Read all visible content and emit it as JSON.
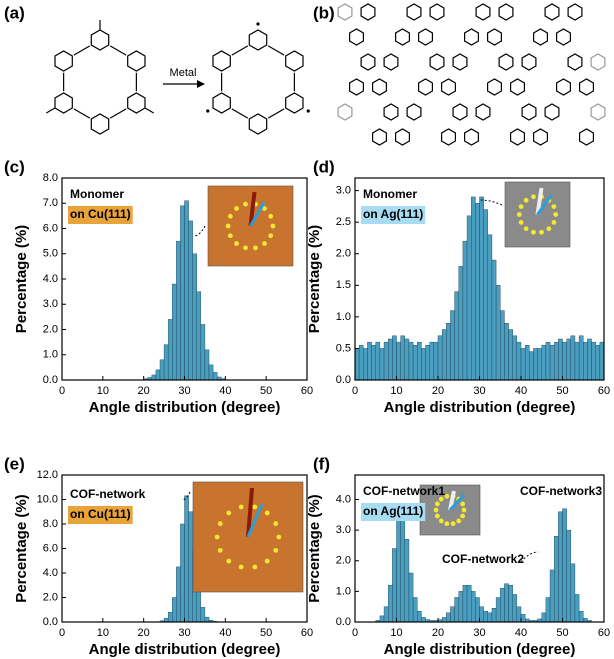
{
  "diagrams": [
    {
      "label": "(a)",
      "arrow_label": "Metal"
    },
    {
      "label": "(b)"
    }
  ],
  "chart_data": [
    {
      "type": "histogram",
      "panel_label": "(c)",
      "x_label": "Angle distribution (degree)",
      "y_label": "Percentage (%)",
      "color": "#4a9ec0",
      "annotations": [
        {
          "text": "Monomer"
        },
        {
          "text": "on Cu(111)",
          "background": "#e8a33a"
        }
      ],
      "bins": [
        0,
        1,
        2,
        3,
        4,
        5,
        6,
        7,
        8,
        9,
        10,
        11,
        12,
        13,
        14,
        15,
        16,
        17,
        18,
        19,
        20,
        21,
        22,
        23,
        24,
        25,
        26,
        27,
        28,
        29,
        30,
        31,
        32,
        33,
        34,
        35,
        36,
        37,
        38,
        39,
        40,
        41,
        42,
        43,
        44,
        45,
        46,
        47,
        48,
        49,
        50,
        51,
        52,
        53,
        54,
        55,
        56,
        57,
        58,
        59,
        60
      ],
      "values": [
        0,
        0,
        0,
        0,
        0,
        0,
        0,
        0,
        0,
        0,
        0,
        0,
        0,
        0,
        0,
        0,
        0,
        0,
        0,
        0,
        0.05,
        0.1,
        0.2,
        0.4,
        0.8,
        1.4,
        2.4,
        3.8,
        5.5,
        6.9,
        7.1,
        6.3,
        5.0,
        3.5,
        2.2,
        1.2,
        0.6,
        0.3,
        0.12,
        0.05,
        0,
        0,
        0,
        0,
        0,
        0,
        0,
        0,
        0,
        0,
        0,
        0,
        0,
        0,
        0,
        0,
        0,
        0,
        0,
        0
      ],
      "xlim": [
        0,
        60
      ],
      "xticks": [
        0,
        10,
        20,
        30,
        40,
        50,
        60
      ],
      "ylim": [
        0,
        8
      ],
      "yticks": [
        {
          "value": 0,
          "label": "0.0"
        },
        {
          "value": 1,
          "label": "1.0"
        },
        {
          "value": 2,
          "label": "2.0"
        },
        {
          "value": 3,
          "label": "3.0"
        },
        {
          "value": 4,
          "label": "4.0"
        },
        {
          "value": 5,
          "label": "5.0"
        },
        {
          "value": 6,
          "label": "6.0"
        },
        {
          "value": 7,
          "label": "7.0"
        },
        {
          "value": 8,
          "label": "8.0"
        }
      ]
    },
    {
      "type": "histogram",
      "panel_label": "(d)",
      "x_label": "Angle distribution (degree)",
      "y_label": "Percentage (%)",
      "color": "#4a9ec0",
      "annotations": [
        {
          "text": "Monomer"
        },
        {
          "text": "on Ag(111)",
          "background": "#a8dcf2"
        }
      ],
      "bins": [
        0,
        1,
        2,
        3,
        4,
        5,
        6,
        7,
        8,
        9,
        10,
        11,
        12,
        13,
        14,
        15,
        16,
        17,
        18,
        19,
        20,
        21,
        22,
        23,
        24,
        25,
        26,
        27,
        28,
        29,
        30,
        31,
        32,
        33,
        34,
        35,
        36,
        37,
        38,
        39,
        40,
        41,
        42,
        43,
        44,
        45,
        46,
        47,
        48,
        49,
        50,
        51,
        52,
        53,
        54,
        55,
        56,
        57,
        58,
        59,
        60
      ],
      "values": [
        0.5,
        0.55,
        0.5,
        0.6,
        0.55,
        0.6,
        0.5,
        0.6,
        0.65,
        0.7,
        0.6,
        0.7,
        0.65,
        0.6,
        0.55,
        0.6,
        0.5,
        0.55,
        0.6,
        0.6,
        0.7,
        0.8,
        0.9,
        1.1,
        1.4,
        1.8,
        2.2,
        2.6,
        2.9,
        2.8,
        2.9,
        2.7,
        2.3,
        1.9,
        1.5,
        1.1,
        0.9,
        0.8,
        0.7,
        0.6,
        0.5,
        0.55,
        0.45,
        0.5,
        0.5,
        0.55,
        0.6,
        0.55,
        0.6,
        0.65,
        0.6,
        0.65,
        0.7,
        0.6,
        0.7,
        0.6,
        0.65,
        0.6,
        0.55,
        0.6
      ],
      "xlim": [
        0,
        60
      ],
      "xticks": [
        0,
        10,
        20,
        30,
        40,
        50,
        60
      ],
      "ylim": [
        0,
        3.2
      ],
      "yticks": [
        {
          "value": 0,
          "label": "0.0"
        },
        0.5,
        {
          "value": 1,
          "label": "1.0"
        },
        1.5,
        {
          "value": 2,
          "label": "2.0"
        },
        2.5,
        {
          "value": 3,
          "label": "3.0"
        }
      ]
    },
    {
      "type": "histogram",
      "panel_label": "(e)",
      "x_label": "Angle distribution (degree)",
      "y_label": "Percentage (%)",
      "color": "#4a9ec0",
      "annotations": [
        {
          "text": "COF-network"
        },
        {
          "text": "on Cu(111)",
          "background": "#e8a33a"
        }
      ],
      "bins": [
        0,
        1,
        2,
        3,
        4,
        5,
        6,
        7,
        8,
        9,
        10,
        11,
        12,
        13,
        14,
        15,
        16,
        17,
        18,
        19,
        20,
        21,
        22,
        23,
        24,
        25,
        26,
        27,
        28,
        29,
        30,
        31,
        32,
        33,
        34,
        35,
        36,
        37,
        38,
        39,
        40,
        41,
        42,
        43,
        44,
        45,
        46,
        47,
        48,
        49,
        50,
        51,
        52,
        53,
        54,
        55,
        56,
        57,
        58,
        59,
        60
      ],
      "values": [
        0,
        0,
        0,
        0,
        0,
        0,
        0,
        0,
        0,
        0,
        0,
        0,
        0,
        0,
        0,
        0,
        0,
        0,
        0,
        0,
        0,
        0,
        0,
        0,
        0.1,
        0.3,
        0.8,
        2.0,
        4.5,
        8.0,
        10.3,
        9.0,
        6.0,
        3.0,
        1.2,
        0.4,
        0.15,
        0.05,
        0,
        0,
        0,
        0,
        0,
        0,
        0,
        0,
        0,
        0,
        0,
        0,
        0,
        0,
        0,
        0,
        0,
        0,
        0,
        0,
        0,
        0
      ],
      "xlim": [
        0,
        60
      ],
      "xticks": [
        0,
        10,
        20,
        30,
        40,
        50,
        60
      ],
      "ylim": [
        0,
        12
      ],
      "yticks": [
        {
          "value": 0,
          "label": "0.0"
        },
        {
          "value": 2,
          "label": "2.0"
        },
        {
          "value": 4,
          "label": "4.0"
        },
        {
          "value": 6,
          "label": "6.0"
        },
        {
          "value": 8,
          "label": "8.0"
        },
        {
          "value": 10,
          "label": "10.0"
        },
        {
          "value": 12,
          "label": "12.0"
        }
      ]
    },
    {
      "type": "histogram",
      "panel_label": "(f)",
      "x_label": "Angle distribution (degree)",
      "y_label": "Percentage (%)",
      "color": "#4a9ec0",
      "annotations": [
        {
          "text": "COF-network1"
        },
        {
          "text": "on Ag(111)",
          "background": "#a8dcf2"
        },
        {
          "text": "COF-network2"
        },
        {
          "text": "COF-network3"
        }
      ],
      "bins": [
        0,
        1,
        2,
        3,
        4,
        5,
        6,
        7,
        8,
        9,
        10,
        11,
        12,
        13,
        14,
        15,
        16,
        17,
        18,
        19,
        20,
        21,
        22,
        23,
        24,
        25,
        26,
        27,
        28,
        29,
        30,
        31,
        32,
        33,
        34,
        35,
        36,
        37,
        38,
        39,
        40,
        41,
        42,
        43,
        44,
        45,
        46,
        47,
        48,
        49,
        50,
        51,
        52,
        53,
        54,
        55,
        56,
        57,
        58,
        59,
        60
      ],
      "values": [
        0,
        0,
        0,
        0,
        0,
        0.05,
        0.2,
        0.5,
        1.2,
        2.4,
        3.4,
        3.5,
        2.7,
        1.6,
        0.8,
        0.35,
        0.15,
        0.08,
        0.05,
        0.05,
        0.08,
        0.15,
        0.3,
        0.5,
        0.8,
        1.0,
        1.2,
        1.2,
        1.0,
        0.8,
        0.5,
        0.35,
        0.3,
        0.45,
        0.8,
        1.1,
        1.25,
        1.2,
        0.9,
        0.5,
        0.25,
        0.1,
        0.05,
        0.05,
        0.1,
        0.3,
        0.8,
        1.7,
        2.8,
        3.6,
        3.7,
        3.0,
        1.9,
        0.9,
        0.35,
        0.12,
        0.05,
        0,
        0,
        0
      ],
      "xlim": [
        0,
        60
      ],
      "xticks": [
        0,
        10,
        20,
        30,
        40,
        50,
        60
      ],
      "ylim": [
        0,
        4.8
      ],
      "yticks": [
        {
          "value": 0,
          "label": "0.0"
        },
        {
          "value": 1,
          "label": "1.0"
        },
        {
          "value": 2,
          "label": "2.0"
        },
        {
          "value": 3,
          "label": "3.0"
        },
        {
          "value": 4,
          "label": "4.0"
        }
      ]
    }
  ]
}
